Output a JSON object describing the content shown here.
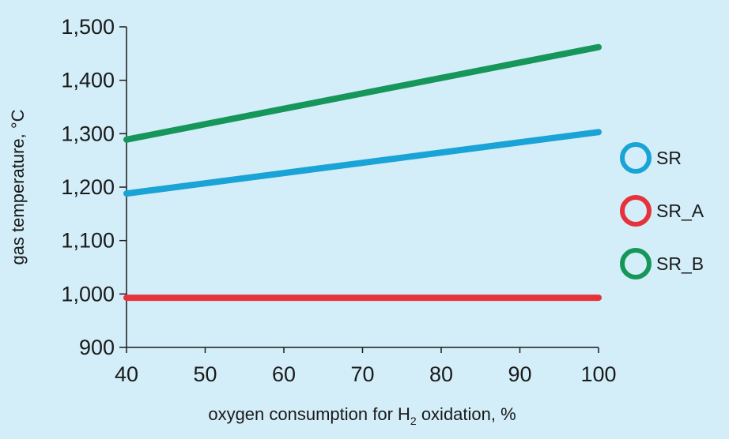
{
  "chart_data": {
    "type": "line",
    "x": [
      40,
      100
    ],
    "xticks": [
      "40",
      "50",
      "60",
      "70",
      "80",
      "90",
      "100"
    ],
    "xtick_values": [
      40,
      50,
      60,
      70,
      80,
      90,
      100
    ],
    "yticks": [
      "900",
      "1,000",
      "1,100",
      "1,200",
      "1,300",
      "1,400",
      "1,500"
    ],
    "ytick_values": [
      900,
      1000,
      1100,
      1200,
      1300,
      1400,
      1500
    ],
    "xlim": [
      40,
      100
    ],
    "ylim": [
      900,
      1500
    ],
    "xlabel_main": "oxygen consumption for H",
    "xlabel_sub": "2",
    "xlabel_tail": " oxidation, %",
    "ylabel": "gas temperature, °C",
    "grid": false,
    "legend_position": "right",
    "series": [
      {
        "name": "SR",
        "color": "#1aa3d6",
        "values": [
          1188,
          1303
        ]
      },
      {
        "name": "SR_A",
        "color": "#e6323a",
        "values": [
          993,
          993
        ]
      },
      {
        "name": "SR_B",
        "color": "#16965a",
        "values": [
          1289,
          1462
        ]
      }
    ]
  }
}
